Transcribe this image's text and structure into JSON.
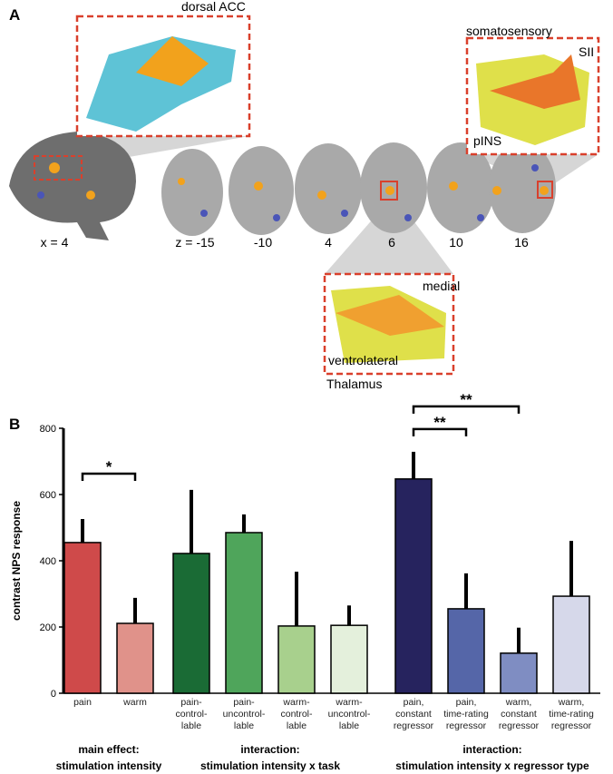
{
  "panel_a": {
    "label": "A",
    "regions": {
      "dacc": "dorsal ACC",
      "somatosensory": "somatosensory",
      "sii": "SII",
      "pins": "pINS",
      "medial": "medial",
      "ventrolateral": "ventrolateral",
      "thalamus": "Thalamus"
    },
    "slices": [
      "x = 4",
      "z = -15",
      "-10",
      "4",
      "6",
      "10",
      "16"
    ]
  },
  "panel_b": {
    "label": "B"
  },
  "chart_data": {
    "type": "bar",
    "y_label": "contrast NPS response",
    "ylim": [
      0,
      800
    ],
    "yticks": [
      0,
      200,
      400,
      600,
      800
    ],
    "groups": [
      {
        "label": "main effect:\nstimulation intensity",
        "categories": [
          "pain",
          "warm"
        ],
        "values": [
          455,
          211
        ],
        "errors": [
          71,
          77
        ],
        "colors": [
          "#cf4a4a",
          "#e0928a"
        ],
        "brackets": [
          {
            "label": "*",
            "from": 0,
            "to": 1
          }
        ]
      },
      {
        "label": "interaction:\nstimulation intensity x task",
        "categories": [
          "pain-\ncontrol-\nlable",
          "pain-\nuncontrol-\nlable",
          "warm-\ncontrol-\nlable",
          "warm-\nuncontrol-\nlable"
        ],
        "values": [
          422,
          485,
          203,
          205
        ],
        "errors": [
          192,
          55,
          164,
          60
        ],
        "colors": [
          "#1a6b35",
          "#4fa55b",
          "#a8d08d",
          "#e4f0dc"
        ]
      },
      {
        "label": "interaction:\nstimulation intensity x regressor type",
        "categories": [
          "pain,\nconstant\nregressor",
          "pain,\ntime-rating\nregressor",
          "warm,\nconstant\nregressor",
          "warm,\ntime-rating\nregressor"
        ],
        "values": [
          647,
          255,
          121,
          293
        ],
        "errors": [
          82,
          107,
          77,
          167
        ],
        "colors": [
          "#26235e",
          "#5566a8",
          "#7f8dc2",
          "#d6d8ea"
        ],
        "brackets": [
          {
            "label": "**",
            "from": 0,
            "to": 1
          },
          {
            "label": "**",
            "from": 0,
            "to": 2
          }
        ]
      }
    ]
  }
}
